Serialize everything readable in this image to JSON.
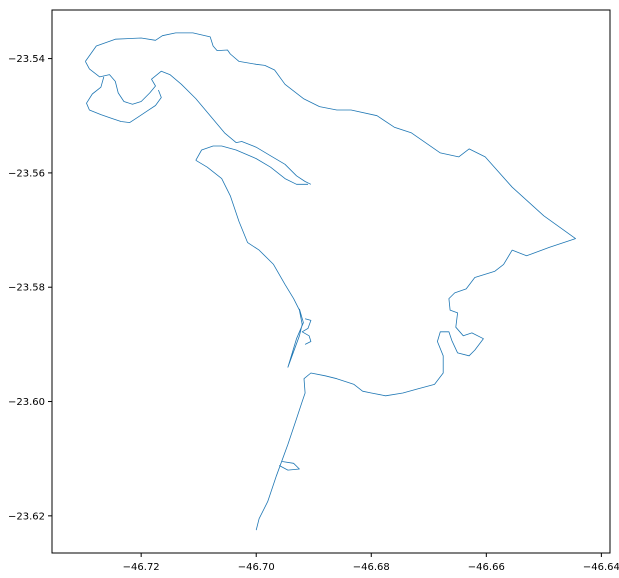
{
  "chart_data": {
    "type": "map",
    "title": "",
    "xlabel": "",
    "ylabel": "",
    "xlim": [
      -46.7355,
      -46.6385
    ],
    "ylim": [
      -23.6265,
      -23.5315
    ],
    "x_ticks": [
      {
        "value": -46.72,
        "label": "−46.72"
      },
      {
        "value": -46.7,
        "label": "−46.70"
      },
      {
        "value": -46.68,
        "label": "−46.68"
      },
      {
        "value": -46.66,
        "label": "−46.66"
      },
      {
        "value": -46.64,
        "label": "−46.64"
      }
    ],
    "y_ticks": [
      {
        "value": -23.54,
        "label": "−23.54"
      },
      {
        "value": -23.56,
        "label": "−23.56"
      },
      {
        "value": -23.58,
        "label": "−23.58"
      },
      {
        "value": -23.6,
        "label": "−23.60"
      },
      {
        "value": -23.62,
        "label": "−23.62"
      }
    ],
    "grid": false,
    "legend": "none",
    "line_color": "#1f77b4",
    "geometries": [
      {
        "name": "",
        "kind": "boundary",
        "coords": [
          [
            -46.7297,
            -23.5405
          ],
          [
            -46.7278,
            -23.5378
          ],
          [
            -46.7245,
            -23.5366
          ],
          [
            -46.72,
            -23.5364
          ],
          [
            -46.7175,
            -23.5368
          ],
          [
            -46.7163,
            -23.536
          ],
          [
            -46.714,
            -23.5355
          ],
          [
            -46.711,
            -23.5355
          ],
          [
            -46.708,
            -23.5362
          ],
          [
            -46.7075,
            -23.5378
          ],
          [
            -46.7068,
            -23.5386
          ],
          [
            -46.705,
            -23.5385
          ],
          [
            -46.7045,
            -23.5392
          ],
          [
            -46.703,
            -23.5405
          ],
          [
            -46.7,
            -23.541
          ],
          [
            -46.6985,
            -23.5412
          ],
          [
            -46.6968,
            -23.542
          ],
          [
            -46.695,
            -23.5445
          ],
          [
            -46.6918,
            -23.547
          ],
          [
            -46.689,
            -23.5484
          ],
          [
            -46.686,
            -23.549
          ],
          [
            -46.6835,
            -23.549
          ],
          [
            -46.679,
            -23.55
          ],
          [
            -46.676,
            -23.552
          ],
          [
            -46.673,
            -23.553
          ],
          [
            -46.668,
            -23.5565
          ],
          [
            -46.6648,
            -23.5572
          ],
          [
            -46.663,
            -23.5558
          ],
          [
            -46.6602,
            -23.5572
          ],
          [
            -46.6555,
            -23.5625
          ],
          [
            -46.65,
            -23.5675
          ],
          [
            -46.6445,
            -23.5715
          ],
          [
            -46.649,
            -23.573
          ],
          [
            -46.653,
            -23.5745
          ],
          [
            -46.6555,
            -23.5735
          ],
          [
            -46.657,
            -23.576
          ],
          [
            -46.6585,
            -23.5772
          ],
          [
            -46.662,
            -23.5783
          ],
          [
            -46.6635,
            -23.5803
          ],
          [
            -46.6655,
            -23.581
          ],
          [
            -46.6665,
            -23.582
          ],
          [
            -46.6663,
            -23.584
          ],
          [
            -46.665,
            -23.5845
          ],
          [
            -46.6653,
            -23.587
          ],
          [
            -46.664,
            -23.5885
          ],
          [
            -46.6625,
            -23.588
          ],
          [
            -46.6605,
            -23.589
          ],
          [
            -46.662,
            -23.591
          ],
          [
            -46.663,
            -23.592
          ],
          [
            -46.665,
            -23.5915
          ],
          [
            -46.666,
            -23.5893
          ],
          [
            -46.6665,
            -23.5878
          ],
          [
            -46.668,
            -23.5878
          ],
          [
            -46.6685,
            -23.5895
          ],
          [
            -46.6675,
            -23.592
          ],
          [
            -46.6675,
            -23.595
          ],
          [
            -46.669,
            -23.597
          ],
          [
            -46.672,
            -23.5978
          ],
          [
            -46.6745,
            -23.5985
          ],
          [
            -46.6775,
            -23.599
          ],
          [
            -46.68,
            -23.5985
          ],
          [
            -46.6815,
            -23.5982
          ],
          [
            -46.683,
            -23.597
          ],
          [
            -46.686,
            -23.596
          ],
          [
            -46.688,
            -23.5955
          ],
          [
            -46.6905,
            -23.595
          ],
          [
            -46.6917,
            -23.596
          ],
          [
            -46.6915,
            -23.5985
          ],
          [
            -46.692,
            -23.6
          ],
          [
            -46.693,
            -23.603
          ],
          [
            -46.6945,
            -23.6075
          ],
          [
            -46.6965,
            -23.613
          ],
          [
            -46.698,
            -23.6175
          ],
          [
            -46.6995,
            -23.6205
          ],
          [
            -46.7,
            -23.6225
          ]
        ]
      },
      {
        "name": "",
        "kind": "boundary",
        "coords": [
          [
            -46.7297,
            -23.5405
          ],
          [
            -46.729,
            -23.5418
          ],
          [
            -46.7272,
            -23.5432
          ],
          [
            -46.7255,
            -23.5428
          ],
          [
            -46.7245,
            -23.544
          ],
          [
            -46.724,
            -23.546
          ],
          [
            -46.723,
            -23.5475
          ],
          [
            -46.7215,
            -23.548
          ],
          [
            -46.72,
            -23.5475
          ],
          [
            -46.7185,
            -23.546
          ],
          [
            -46.7175,
            -23.5448
          ],
          [
            -46.7182,
            -23.5436
          ],
          [
            -46.7165,
            -23.5422
          ],
          [
            -46.715,
            -23.5428
          ],
          [
            -46.713,
            -23.5445
          ],
          [
            -46.7105,
            -23.547
          ],
          [
            -46.708,
            -23.55
          ],
          [
            -46.7055,
            -23.553
          ],
          [
            -46.7035,
            -23.5547
          ],
          [
            -46.7025,
            -23.5545
          ],
          [
            -46.7,
            -23.5555
          ],
          [
            -46.6975,
            -23.557
          ],
          [
            -46.695,
            -23.5585
          ],
          [
            -46.693,
            -23.5605
          ],
          [
            -46.6915,
            -23.5615
          ],
          [
            -46.6905,
            -23.562
          ]
        ]
      },
      {
        "name": "",
        "kind": "boundary",
        "coords": [
          [
            -46.7265,
            -23.5432
          ],
          [
            -46.727,
            -23.545
          ],
          [
            -46.7285,
            -23.5462
          ],
          [
            -46.7295,
            -23.5478
          ],
          [
            -46.729,
            -23.549
          ],
          [
            -46.727,
            -23.5498
          ],
          [
            -46.725,
            -23.5505
          ],
          [
            -46.7235,
            -23.551
          ],
          [
            -46.722,
            -23.5512
          ],
          [
            -46.7205,
            -23.5502
          ],
          [
            -46.719,
            -23.5492
          ],
          [
            -46.7175,
            -23.5482
          ],
          [
            -46.7165,
            -23.5468
          ],
          [
            -46.717,
            -23.5455
          ]
        ]
      },
      {
        "name": "",
        "kind": "boundary",
        "coords": [
          [
            -46.7105,
            -23.5578
          ],
          [
            -46.7085,
            -23.559
          ],
          [
            -46.706,
            -23.561
          ],
          [
            -46.7045,
            -23.564
          ],
          [
            -46.703,
            -23.5685
          ],
          [
            -46.7015,
            -23.5722
          ],
          [
            -46.6995,
            -23.5735
          ],
          [
            -46.697,
            -23.576
          ],
          [
            -46.695,
            -23.5795
          ],
          [
            -46.6935,
            -23.582
          ],
          [
            -46.6925,
            -23.584
          ],
          [
            -46.692,
            -23.5865
          ],
          [
            -46.6925,
            -23.5885
          ],
          [
            -46.6945,
            -23.594
          ],
          [
            -46.693,
            -23.589
          ],
          [
            -46.6918,
            -23.5862
          ],
          [
            -46.6925,
            -23.5838
          ]
        ]
      },
      {
        "name": "",
        "kind": "boundary",
        "coords": [
          [
            -46.7105,
            -23.5578
          ],
          [
            -46.7095,
            -23.556
          ],
          [
            -46.7075,
            -23.5553
          ],
          [
            -46.706,
            -23.5553
          ],
          [
            -46.7035,
            -23.556
          ],
          [
            -46.7,
            -23.5575
          ],
          [
            -46.6975,
            -23.559
          ],
          [
            -46.695,
            -23.561
          ],
          [
            -46.693,
            -23.562
          ],
          [
            -46.691,
            -23.562
          ]
        ]
      },
      {
        "name": "",
        "kind": "boundary",
        "coords": [
          [
            -46.6915,
            -23.5855
          ],
          [
            -46.6905,
            -23.5858
          ],
          [
            -46.691,
            -23.5872
          ],
          [
            -46.692,
            -23.5878
          ],
          [
            -46.6908,
            -23.5885
          ],
          [
            -46.6905,
            -23.5895
          ],
          [
            -46.6915,
            -23.59
          ]
        ]
      },
      {
        "name": "",
        "kind": "boundary",
        "coords": [
          [
            -46.6955,
            -23.6105
          ],
          [
            -46.6935,
            -23.6108
          ],
          [
            -46.6925,
            -23.6118
          ],
          [
            -46.6945,
            -23.612
          ],
          [
            -46.696,
            -23.6112
          ]
        ]
      }
    ]
  }
}
